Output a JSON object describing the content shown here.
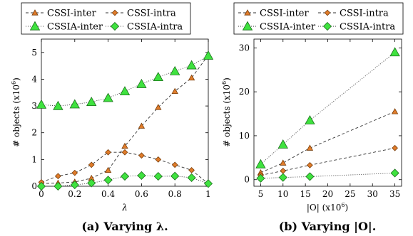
{
  "colors": {
    "inter_fill": "#E07C2A",
    "intra_fill": "#E07C2A",
    "cssia_fill": "#3FE23F",
    "marker_stroke": "#7A3E0A",
    "cssia_stroke": "#1B6F1B",
    "line": "#333333"
  },
  "chart_data": [
    {
      "type": "line",
      "caption": "(a) Varying λ.",
      "xlabel": "λ",
      "ylabel": "# objects (x10",
      "ylabel_sup": "6",
      "ylabel_close": ")",
      "xlim": [
        0,
        1
      ],
      "ylim": [
        0,
        5.5
      ],
      "xticks": [
        0,
        0.2,
        0.4,
        0.6,
        0.8,
        1
      ],
      "yticks": [
        0,
        1,
        2,
        3,
        4,
        5
      ],
      "xtick_labels": [
        "0",
        "0.2",
        "0.4",
        "0.6",
        "0.8",
        "1"
      ],
      "ytick_labels": [
        "0",
        "1",
        "2",
        "3",
        "4",
        "5"
      ],
      "x": [
        0,
        0.1,
        0.2,
        0.3,
        0.4,
        0.5,
        0.6,
        0.7,
        0.8,
        0.9,
        1
      ],
      "series": [
        {
          "name": "CSSI-inter",
          "marker": "tri-small",
          "dash": "4,3",
          "values": [
            0.1,
            0.12,
            0.16,
            0.3,
            0.6,
            1.5,
            2.25,
            2.95,
            3.55,
            4.05,
            4.9
          ]
        },
        {
          "name": "CSSI-intra",
          "marker": "dia-small",
          "dash": "4,3",
          "values": [
            0.15,
            0.38,
            0.5,
            0.8,
            1.27,
            1.27,
            1.15,
            1.0,
            0.8,
            0.6,
            0.1
          ]
        },
        {
          "name": "CSSIA-inter",
          "marker": "tri-big",
          "dash": "1,2",
          "values": [
            3.05,
            3.0,
            3.06,
            3.15,
            3.3,
            3.55,
            3.82,
            4.08,
            4.3,
            4.52,
            4.88
          ]
        },
        {
          "name": "CSSIA-intra",
          "marker": "dia-big",
          "dash": "1,2",
          "values": [
            0.0,
            0.0,
            0.05,
            0.12,
            0.23,
            0.37,
            0.4,
            0.37,
            0.38,
            0.32,
            0.1
          ]
        }
      ],
      "legend": {
        "placement": "top, 2 columns"
      }
    },
    {
      "type": "line",
      "caption": "(b) Varying |O|.",
      "xlabel": "|O| (x10",
      "xlabel_sup": "6",
      "xlabel_close": ")",
      "ylabel": "# objects (x10",
      "ylabel_sup": "6",
      "ylabel_close": ")",
      "xlim": [
        3.5,
        36.5
      ],
      "ylim": [
        -1.5,
        32
      ],
      "xticks": [
        5,
        10,
        15,
        20,
        25,
        30,
        35
      ],
      "yticks": [
        0,
        10,
        20,
        30
      ],
      "xtick_labels": [
        "5",
        "10",
        "15",
        "20",
        "25",
        "30",
        "35"
      ],
      "ytick_labels": [
        "0",
        "10",
        "20",
        "30"
      ],
      "x": [
        5,
        10,
        16,
        35
      ],
      "series": [
        {
          "name": "CSSI-inter",
          "marker": "tri-small",
          "dash": "4,3",
          "values": [
            1.6,
            3.8,
            7.2,
            15.5
          ]
        },
        {
          "name": "CSSI-intra",
          "marker": "dia-small",
          "dash": "4,3",
          "values": [
            1.0,
            2.0,
            3.3,
            7.2
          ]
        },
        {
          "name": "CSSIA-inter",
          "marker": "tri-big",
          "dash": "1,2",
          "values": [
            3.5,
            8.0,
            13.5,
            29.0
          ]
        },
        {
          "name": "CSSIA-intra",
          "marker": "dia-big",
          "dash": "1,2",
          "values": [
            0.3,
            0.5,
            0.7,
            1.5
          ]
        }
      ],
      "legend": {
        "placement": "top, 2 columns"
      }
    }
  ]
}
